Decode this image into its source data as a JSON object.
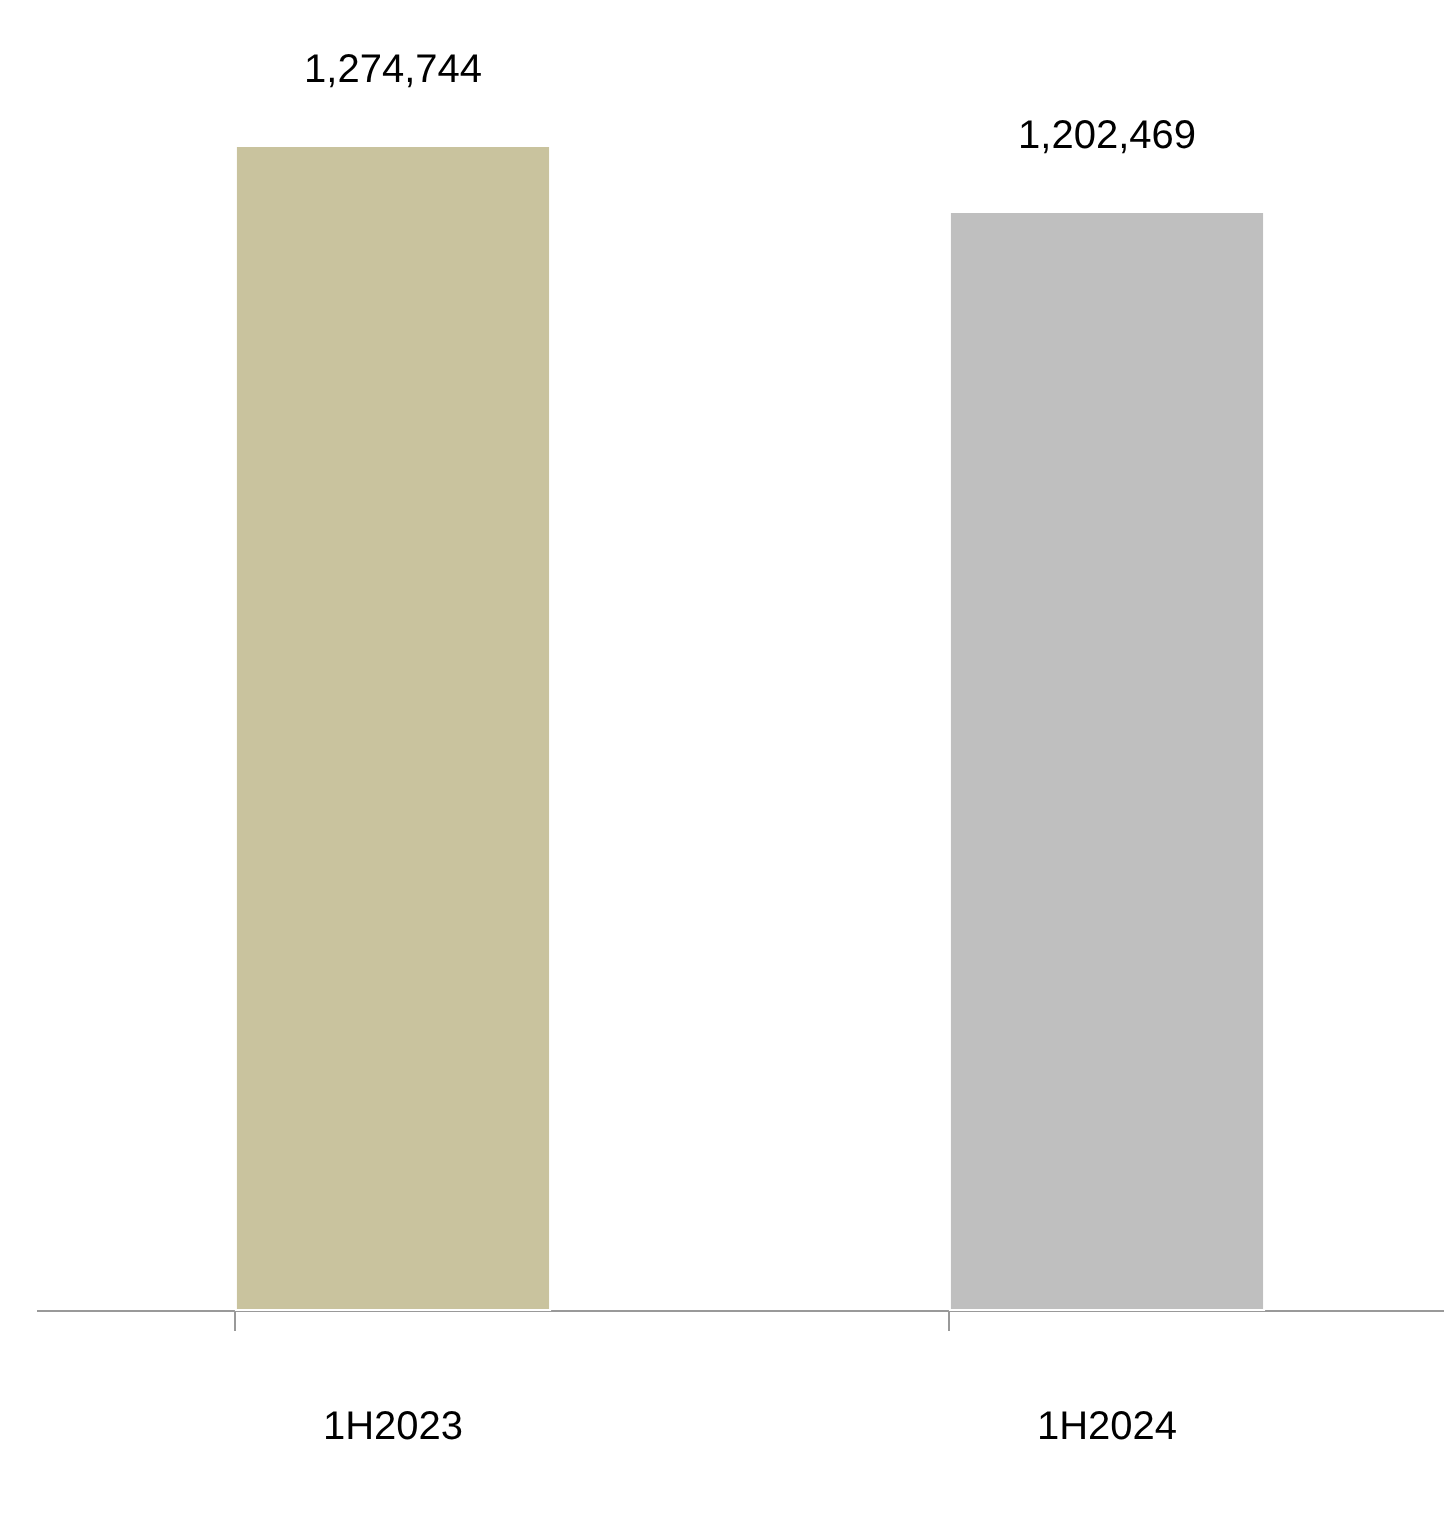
{
  "chart_data": {
    "type": "bar",
    "categories": [
      "1H2023",
      "1H2024"
    ],
    "values": [
      1274744,
      1202469
    ],
    "colors": [
      "#c9c39e",
      "#bfbfbf"
    ],
    "data_labels": true,
    "value_labels": [
      "1,274,744",
      "1,202,469"
    ]
  }
}
